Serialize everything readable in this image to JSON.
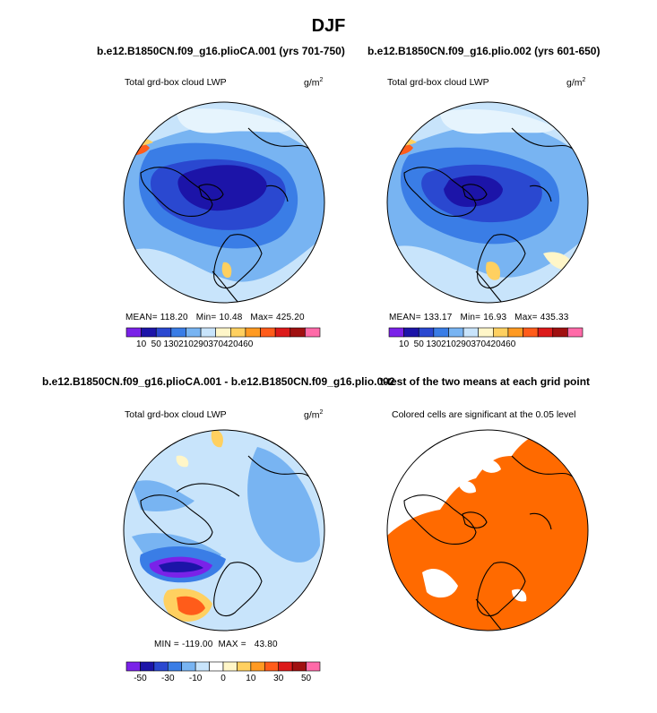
{
  "page": {
    "title": "DJF"
  },
  "chart_data": [
    {
      "type": "heatmap",
      "projection": "north-polar-stereographic",
      "title": "b.e12.B1850CN.f09_g16.plioCA.001 (yrs 701-750)",
      "variable": "Total grd-box cloud LWP",
      "units": "g/m",
      "units_sup": "2",
      "stats": {
        "mean_label": "MEAN=",
        "mean": "118.20",
        "min_label": "Min=",
        "min": "10.48",
        "max_label": "Max=",
        "max": "425.20"
      },
      "colorbar": {
        "colors": [
          "#7a22e8",
          "#1c14a8",
          "#2a48d0",
          "#3a7de6",
          "#78b4f2",
          "#c8e4fb",
          "#fff6c8",
          "#ffd060",
          "#ff9a22",
          "#ff5c1a",
          "#dc1a1a",
          "#a01010",
          "#ff6aa8"
        ],
        "labels": [
          "10",
          "50",
          "130",
          "210",
          "290",
          "370",
          "420",
          "460"
        ]
      }
    },
    {
      "type": "heatmap",
      "projection": "north-polar-stereographic",
      "title": "b.e12.B1850CN.f09_g16.plio.002 (yrs 601-650)",
      "variable": "Total grd-box cloud LWP",
      "units": "g/m",
      "units_sup": "2",
      "stats": {
        "mean_label": "MEAN=",
        "mean": "133.17",
        "min_label": "Min=",
        "min": "16.93",
        "max_label": "Max=",
        "max": "435.33"
      },
      "colorbar": {
        "colors": [
          "#7a22e8",
          "#1c14a8",
          "#2a48d0",
          "#3a7de6",
          "#78b4f2",
          "#c8e4fb",
          "#fff6c8",
          "#ffd060",
          "#ff9a22",
          "#ff5c1a",
          "#dc1a1a",
          "#a01010",
          "#ff6aa8"
        ],
        "labels": [
          "10",
          "50",
          "130",
          "210",
          "290",
          "370",
          "420",
          "460"
        ]
      }
    },
    {
      "type": "heatmap",
      "projection": "north-polar-stereographic",
      "title": "b.e12.B1850CN.f09_g16.plioCA.001 - b.e12.B1850CN.f09_g16.plio.002",
      "variable": "Total grd-box cloud LWP",
      "units": "g/m",
      "units_sup": "2",
      "stats": {
        "min_label": "MIN =",
        "min": "-119.00",
        "max_label": "MAX =",
        "max": "43.80"
      },
      "colorbar": {
        "colors": [
          "#7a22e8",
          "#1c14a8",
          "#2a48d0",
          "#3a7de6",
          "#78b4f2",
          "#c8e4fb",
          "#ffffff",
          "#fff6c8",
          "#ffd060",
          "#ff9a22",
          "#ff5c1a",
          "#dc1a1a",
          "#a01010",
          "#ff6aa8"
        ],
        "labels": [
          "-50",
          "-30",
          "-10",
          "0",
          "10",
          "30",
          "50"
        ]
      }
    },
    {
      "type": "heatmap",
      "projection": "north-polar-stereographic",
      "title": "t-test of the two means at each grid point",
      "subtitle": "Colored cells are significant at the 0.05 level",
      "significant_color": "#ff6a00"
    }
  ]
}
